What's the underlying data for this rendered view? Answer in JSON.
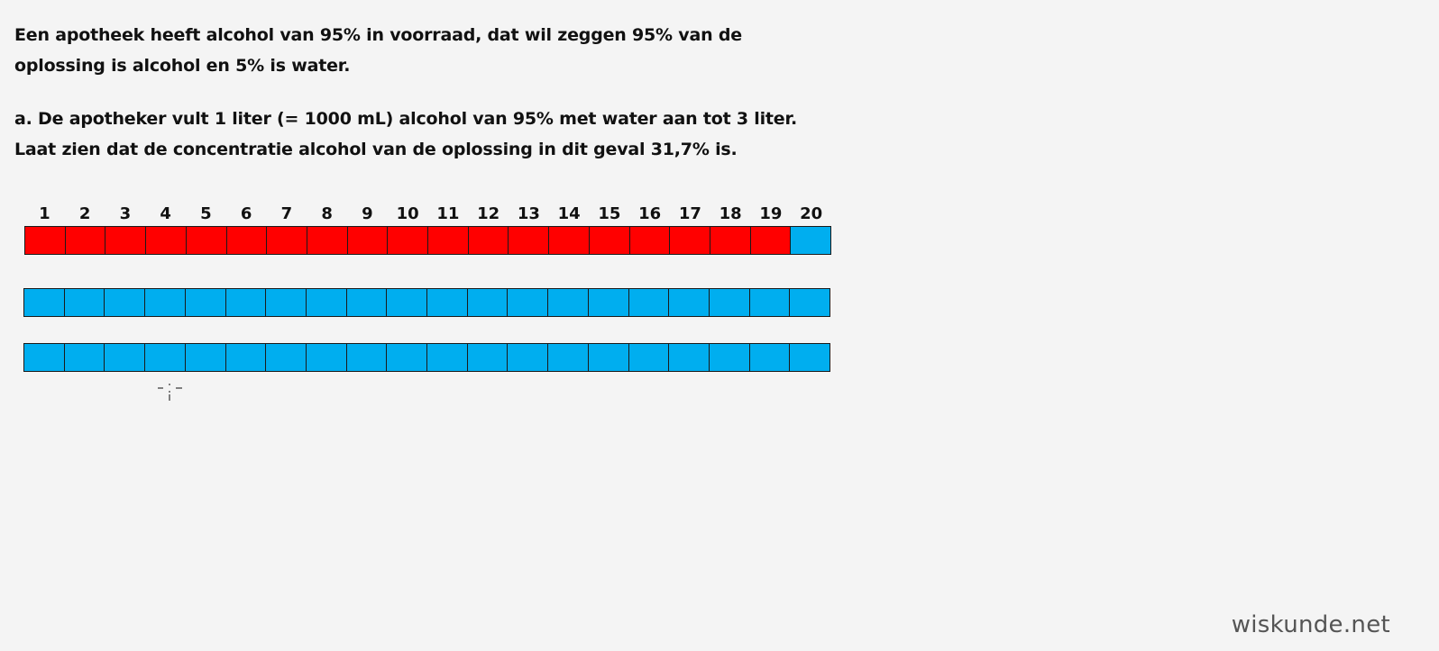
{
  "question": {
    "intro_lines": [
      "Een apotheek heeft alcohol van 95% in voorraad, dat wil zeggen 95% van de",
      "oplossing is alcohol en 5% is water."
    ],
    "part_a_lines": [
      "a. De apotheker vult 1 liter (= 1000 mL) alcohol van 95% met water aan tot 3 liter.",
      "Laat zien dat de concentratie alcohol van de oplossing in dit geval 31,7% is."
    ]
  },
  "diagram": {
    "column_labels": [
      "1",
      "2",
      "3",
      "4",
      "5",
      "6",
      "7",
      "8",
      "9",
      "10",
      "11",
      "12",
      "13",
      "14",
      "15",
      "16",
      "17",
      "18",
      "19",
      "20"
    ],
    "rows": [
      {
        "alcohol_cells": 19,
        "water_cells": 1
      },
      {
        "alcohol_cells": 0,
        "water_cells": 20
      },
      {
        "alcohol_cells": 0,
        "water_cells": 20
      }
    ],
    "colors": {
      "alcohol": "#ff0000",
      "water": "#00aeef"
    }
  },
  "watermark": "wiskunde.net"
}
